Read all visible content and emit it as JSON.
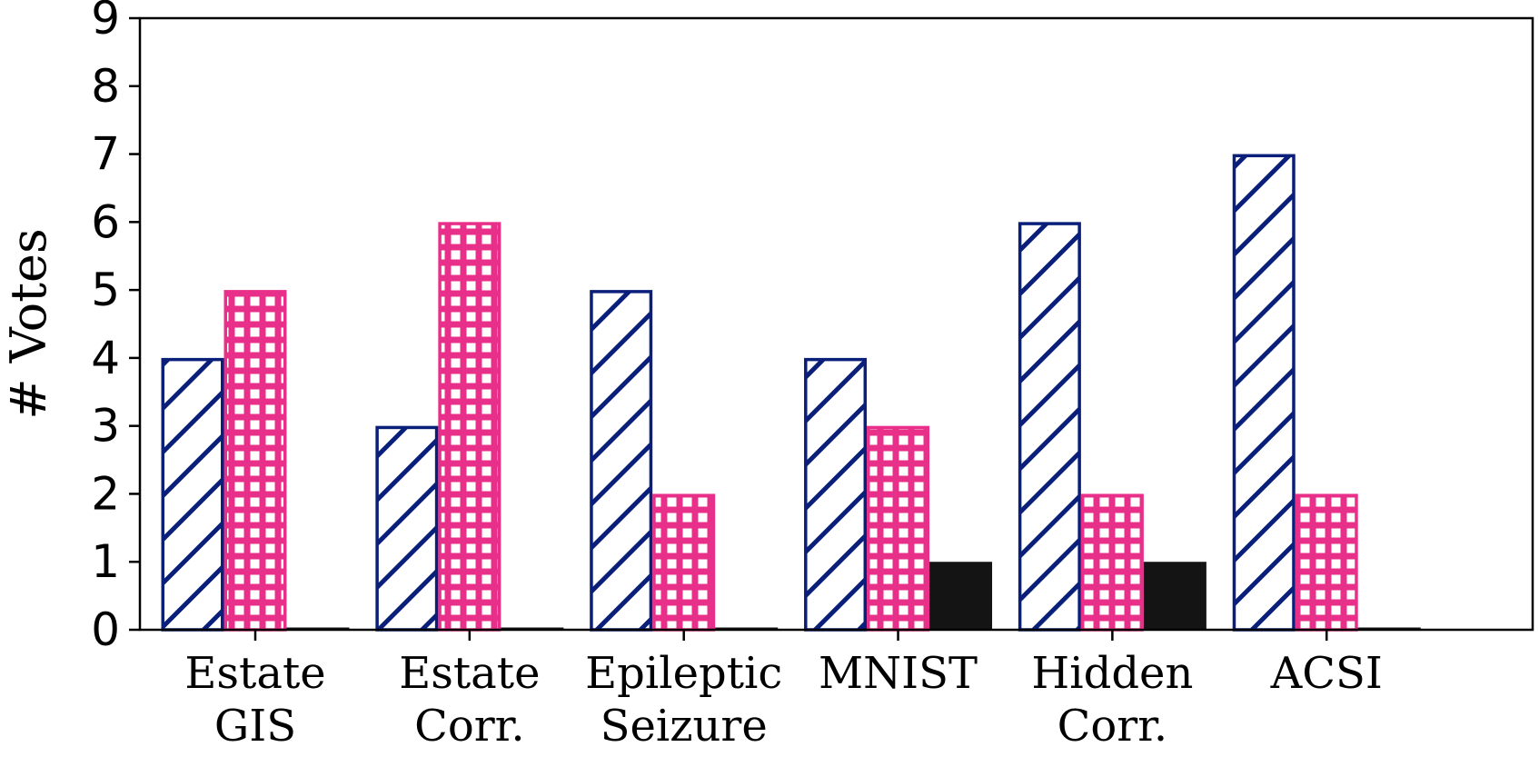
{
  "chart_data": {
    "type": "bar",
    "title": "",
    "xlabel": "",
    "ylabel": "# Votes",
    "ylim": [
      0,
      9
    ],
    "yticks": [
      0,
      1,
      2,
      3,
      4,
      5,
      6,
      7,
      8,
      9
    ],
    "grid": false,
    "legend": "none",
    "categories": [
      [
        "Estate",
        "GIS"
      ],
      [
        "Estate",
        "Corr."
      ],
      [
        "Epileptic",
        "Seizure"
      ],
      [
        "MNIST"
      ],
      [
        "Hidden",
        "Corr."
      ],
      [
        "ACSI"
      ]
    ],
    "series": [
      {
        "name": "series-1",
        "pattern": "diagonal-hatch",
        "color": "#0a1f7a",
        "values": [
          4,
          3,
          5,
          4,
          6,
          7
        ]
      },
      {
        "name": "series-2",
        "pattern": "grid-hatch",
        "color": "#e8308a",
        "values": [
          5,
          6,
          2,
          3,
          2,
          2
        ]
      },
      {
        "name": "series-3",
        "pattern": "solid",
        "color": "#141414",
        "values": [
          0,
          0,
          0,
          1,
          1,
          0
        ]
      }
    ]
  }
}
